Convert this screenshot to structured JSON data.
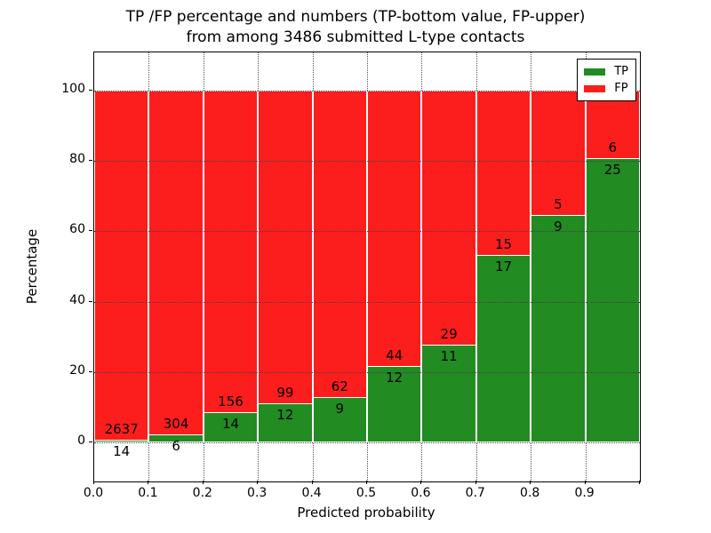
{
  "title": {
    "line1": "TP /FP percentage and numbers (TP-bottom value, FP-upper)",
    "line2": "from among 3486 submitted L-type contacts"
  },
  "axes": {
    "xlabel": "Predicted probability",
    "ylabel": "Percentage",
    "x_tick_labels": [
      "0.0",
      "0.1",
      "0.2",
      "0.3",
      "0.4",
      "0.5",
      "0.6",
      "0.7",
      "0.8",
      "0.9"
    ],
    "y_tick_labels": [
      "0",
      "20",
      "40",
      "60",
      "80",
      "100"
    ],
    "y_tick_values": [
      0,
      20,
      40,
      60,
      80,
      100
    ]
  },
  "legend": {
    "items": [
      {
        "label": "TP",
        "color": "#228b22"
      },
      {
        "label": "FP",
        "color": "#fc1d1d"
      }
    ]
  },
  "colors": {
    "tp": "#228b22",
    "fp": "#fc1d1d",
    "bar_edge": "#ffffff",
    "grid": "#444444"
  },
  "chart_data": {
    "type": "bar",
    "stacked": true,
    "normalized_to": 100,
    "title": "TP /FP percentage and numbers (TP-bottom value, FP-upper) from among 3486 submitted L-type contacts",
    "xlabel": "Predicted probability",
    "ylabel": "Percentage",
    "total_contacts": 3486,
    "bin_width": 0.1,
    "bin_starts": [
      0.0,
      0.1,
      0.2,
      0.3,
      0.4,
      0.5,
      0.6,
      0.7,
      0.8,
      0.9
    ],
    "categories": [
      "0.0-0.1",
      "0.1-0.2",
      "0.2-0.3",
      "0.3-0.4",
      "0.4-0.5",
      "0.5-0.6",
      "0.6-0.7",
      "0.7-0.8",
      "0.8-0.9",
      "0.9-1.0"
    ],
    "series": [
      {
        "name": "TP",
        "counts": [
          14,
          6,
          14,
          12,
          9,
          12,
          11,
          17,
          9,
          25
        ],
        "color": "#228b22",
        "position": "bottom"
      },
      {
        "name": "FP",
        "counts": [
          2637,
          304,
          156,
          99,
          62,
          44,
          29,
          15,
          5,
          6
        ],
        "color": "#fc1d1d",
        "position": "top"
      }
    ],
    "tp_percent": [
      0.53,
      1.94,
      8.24,
      10.81,
      12.68,
      21.43,
      27.5,
      53.13,
      64.29,
      80.65
    ],
    "xlim": [
      0.0,
      1.0
    ],
    "ylim": [
      -11,
      111
    ],
    "grid": true,
    "legend_position": "upper right"
  }
}
